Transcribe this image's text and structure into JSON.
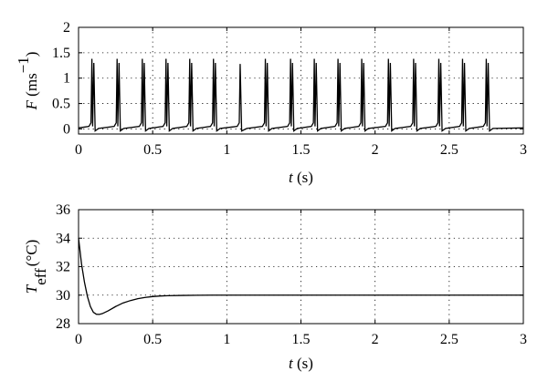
{
  "chart_data": [
    {
      "type": "line",
      "xlim": [
        0,
        3
      ],
      "ylim": [
        -0.1,
        2
      ],
      "xticks": [
        0,
        0.5,
        1,
        1.5,
        2,
        2.5,
        3
      ],
      "yticks": [
        0,
        0.5,
        1,
        1.5,
        2
      ],
      "xtick_labels": [
        "0",
        "0.5",
        "1",
        "1.5",
        "2",
        "2.5",
        "3"
      ],
      "ytick_labels": [
        "0",
        "0.5",
        "1",
        "1.5",
        "2"
      ],
      "xlabel": {
        "var": "t",
        "unit": " (s)"
      },
      "ylabel": {
        "var": "F",
        "unit": " (ms",
        "sup": "−1",
        "close": ")"
      },
      "grid": true,
      "baseline": 0.02,
      "spike_times": [
        0.09,
        0.26,
        0.43,
        0.59,
        0.75,
        0.91,
        1.09,
        1.26,
        1.43,
        1.59,
        1.75,
        1.91,
        2.09,
        2.26,
        2.43,
        2.59,
        2.75
      ],
      "spike_peaks": [
        [
          1.38,
          1.3
        ],
        [
          1.38,
          1.3
        ],
        [
          1.38,
          1.3
        ],
        [
          1.38,
          1.3
        ],
        [
          1.38,
          1.3
        ],
        [
          1.38,
          1.3
        ],
        [
          1.28,
          0
        ],
        [
          1.38,
          1.3
        ],
        [
          1.38,
          1.3
        ],
        [
          1.38,
          1.3
        ],
        [
          1.38,
          1.3
        ],
        [
          1.38,
          1.3
        ],
        [
          1.38,
          1.3
        ],
        [
          1.38,
          1.3
        ],
        [
          1.38,
          1.3
        ],
        [
          1.38,
          1.3
        ],
        [
          1.38,
          1.3
        ]
      ]
    },
    {
      "type": "line",
      "xlim": [
        0,
        3
      ],
      "ylim": [
        28,
        36
      ],
      "xticks": [
        0,
        0.5,
        1,
        1.5,
        2,
        2.5,
        3
      ],
      "yticks": [
        28,
        30,
        32,
        34,
        36
      ],
      "xtick_labels": [
        "0",
        "0.5",
        "1",
        "1.5",
        "2",
        "2.5",
        "3"
      ],
      "ytick_labels": [
        "28",
        "30",
        "32",
        "34",
        "36"
      ],
      "xlabel": {
        "var": "t",
        "unit": " (s)"
      },
      "ylabel": {
        "var": "T",
        "sub": "eff",
        "unit": "(°C)"
      },
      "grid": true,
      "series": [
        {
          "x": [
            0,
            0.02,
            0.04,
            0.06,
            0.08,
            0.1,
            0.12,
            0.14,
            0.16,
            0.2,
            0.25,
            0.3,
            0.35,
            0.4,
            0.45,
            0.5,
            0.55,
            0.6,
            0.7,
            0.8,
            0.9,
            1.0,
            1.5,
            2.0,
            2.5,
            3.0
          ],
          "y": [
            34.0,
            32.2,
            30.9,
            29.9,
            29.2,
            28.8,
            28.66,
            28.65,
            28.7,
            28.9,
            29.2,
            29.45,
            29.62,
            29.75,
            29.84,
            29.9,
            29.94,
            29.96,
            29.98,
            29.99,
            30.0,
            30.0,
            30.0,
            30.0,
            30.0,
            30.0
          ]
        }
      ]
    }
  ]
}
